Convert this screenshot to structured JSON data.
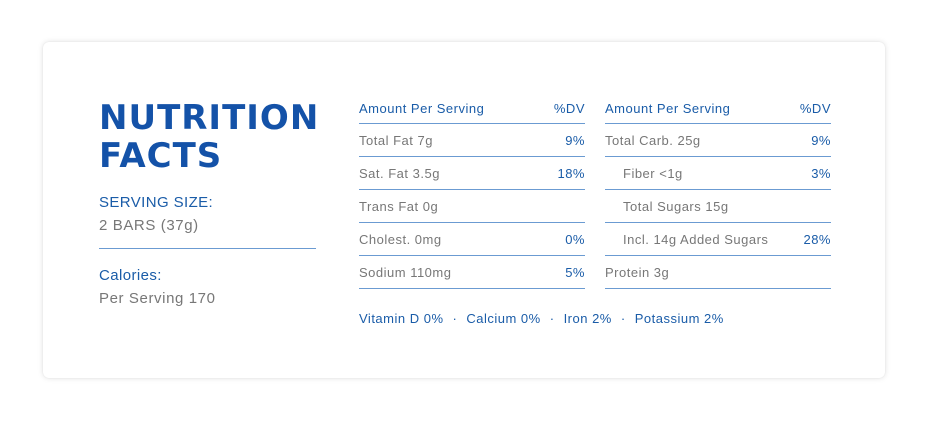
{
  "title": "NUTRITION\nFACTS",
  "serving": {
    "label": "SERVING SIZE:",
    "value": "2 BARS (37g)"
  },
  "calories": {
    "label": "Calories:",
    "value": "Per Serving 170"
  },
  "left_table": {
    "header": {
      "name": "Amount Per Serving",
      "dv": "%DV"
    },
    "rows": [
      {
        "name": "Total Fat 7g",
        "dv": "9%"
      },
      {
        "name": "Sat. Fat 3.5g",
        "dv": "18%"
      },
      {
        "name": "Trans Fat 0g",
        "dv": ""
      },
      {
        "name": "Cholest. 0mg",
        "dv": "0%"
      },
      {
        "name": "Sodium 110mg",
        "dv": "5%"
      }
    ]
  },
  "right_table": {
    "header": {
      "name": "Amount Per Serving",
      "dv": "%DV"
    },
    "rows": [
      {
        "name": "Total Carb. 25g",
        "dv": "9%"
      },
      {
        "name": "Fiber <1g",
        "dv": "3%"
      },
      {
        "name": "Total Sugars 15g",
        "dv": ""
      },
      {
        "name": "Incl. 14g Added Sugars",
        "dv": "28%"
      },
      {
        "name": "Protein 3g",
        "dv": ""
      }
    ]
  },
  "footer": {
    "items": [
      "Vitamin D 0%",
      "Calcium 0%",
      "Iron 2%",
      "Potassium 2%"
    ],
    "separator": "·"
  }
}
